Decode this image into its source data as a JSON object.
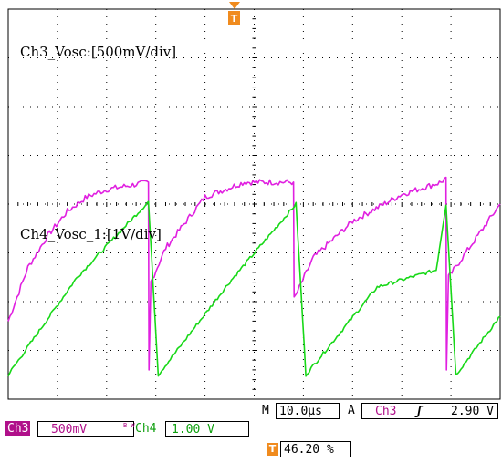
{
  "display": {
    "divisions_x": 10,
    "divisions_y": 8,
    "colors": {
      "ch3": "#e020e0",
      "ch4": "#18d818",
      "grid": "#000000",
      "trigger_marker": "#f08b1e",
      "ch3_tag_bg": "#b0108a",
      "ch4_text": "#10a010"
    }
  },
  "channels": {
    "ch3_label": "Ch3_Vosc:[500mV/div]",
    "ch4_label": "Ch4_Vosc_1:[1V/div]"
  },
  "trigger_marker_icon": "T",
  "status": {
    "timebase_prefix": "M",
    "timebase": "10.0µs",
    "trigger_prefix": "A",
    "trigger_source": "Ch3",
    "trigger_slope_icon": "rising-edge-icon",
    "trigger_slope_glyph": "ʃ",
    "trigger_level": "2.90 V",
    "ch3_name": "Ch3",
    "ch3_scale": "500mV",
    "bw_glyph": "B W",
    "ch4_name": "Ch4",
    "ch4_scale": "1.00 V",
    "position_icon": "T",
    "position_percent": "46.20 %"
  },
  "chart_data": {
    "type": "line",
    "x_unit": "µs",
    "x_range": [
      0,
      100
    ],
    "series": [
      {
        "name": "Ch3_Vosc",
        "points": [
          [
            0,
            -2.4
          ],
          [
            4,
            -1.3
          ],
          [
            8,
            -0.65
          ],
          [
            12,
            -0.15
          ],
          [
            16,
            0.15
          ],
          [
            20,
            0.3
          ],
          [
            28.5,
            0.45
          ],
          [
            28.6,
            -3.4
          ],
          [
            29,
            -1.6
          ],
          [
            32,
            -0.9
          ],
          [
            40,
            0.15
          ],
          [
            48,
            0.45
          ],
          [
            58,
            0.45
          ],
          [
            58.1,
            -1.95
          ],
          [
            62,
            -1.1
          ],
          [
            70,
            -0.35
          ],
          [
            80,
            0.2
          ],
          [
            88,
            0.45
          ],
          [
            89,
            0.55
          ],
          [
            89.1,
            -3.4
          ],
          [
            89.5,
            -1.5
          ],
          [
            100,
            0.0
          ]
        ]
      },
      {
        "name": "Ch4_Vosc_1",
        "points": [
          [
            0,
            -3.5
          ],
          [
            14,
            -1.5
          ],
          [
            28.5,
            0.05
          ],
          [
            30.5,
            -3.5
          ],
          [
            45,
            -1.6
          ],
          [
            58.5,
            0.0
          ],
          [
            60.5,
            -3.5
          ],
          [
            75,
            -1.7
          ],
          [
            87,
            -1.35
          ],
          [
            89,
            0.0
          ],
          [
            91,
            -3.5
          ],
          [
            100,
            -2.3
          ]
        ]
      }
    ]
  }
}
